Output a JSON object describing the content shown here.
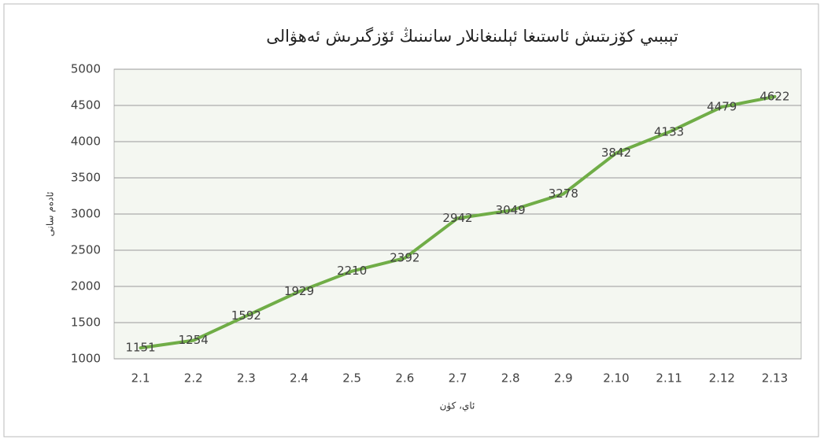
{
  "chart_data": {
    "type": "line",
    "title": "تېببىي كۆزىتىش ئاستىغا ئېلىنغانلار سانىنىڭ ئۆزگىرىش ئەھۋالى",
    "x_label": "ئاي، كۈن",
    "y_label": "ئادەم سانى",
    "categories": [
      "2.1",
      "2.2",
      "2.3",
      "2.4",
      "2.5",
      "2.6",
      "2.7",
      "2.8",
      "2.9",
      "2.10",
      "2.11",
      "2.12",
      "2.13"
    ],
    "values": [
      1151,
      1254,
      1592,
      1929,
      2210,
      2392,
      2942,
      3049,
      3278,
      3842,
      4133,
      4479,
      4622
    ],
    "color": "#70ad47",
    "ylim": [
      1000,
      5000
    ],
    "yticks": [
      1000,
      1500,
      2000,
      2500,
      3000,
      3500,
      4000,
      4500,
      5000
    ],
    "grid": true
  }
}
